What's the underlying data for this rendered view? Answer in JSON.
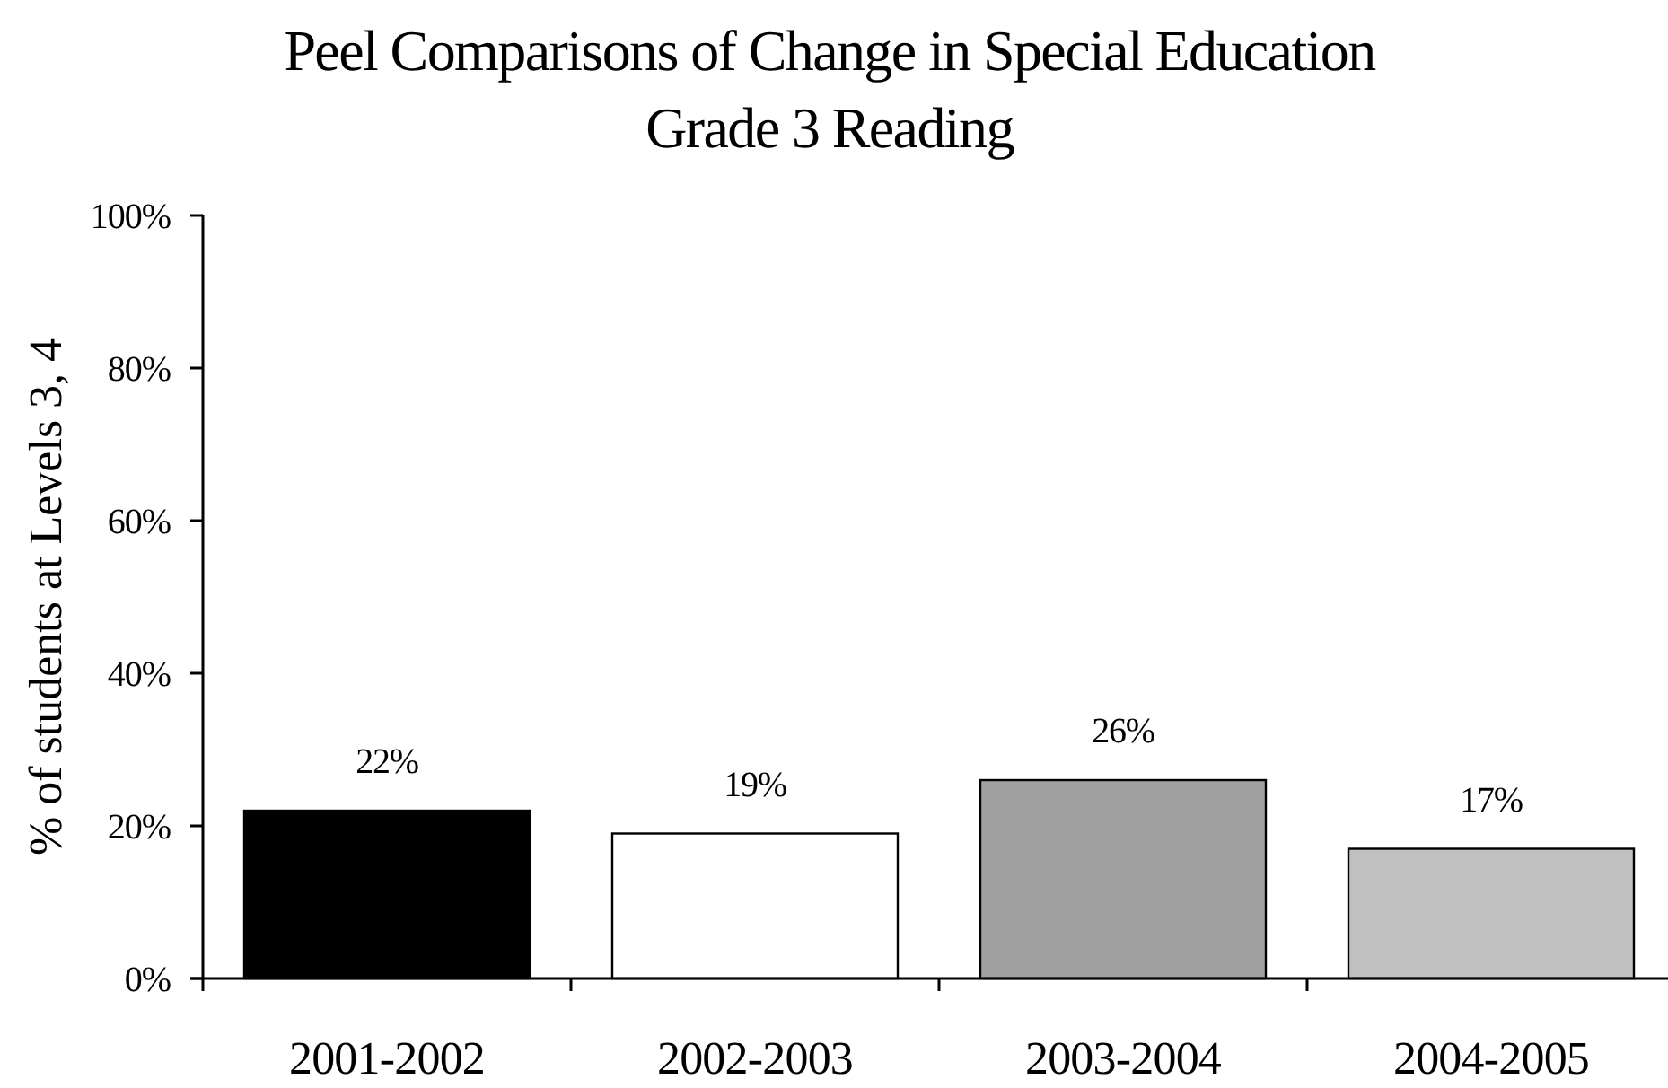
{
  "chart_data": {
    "type": "bar",
    "title": "Peel Comparisons of Change in Special Education",
    "subtitle": "Grade 3 Reading",
    "ylabel": "% of students at Levels 3, 4",
    "categories": [
      "2001-2002",
      "2002-2003",
      "2003-2004",
      "2004-2005"
    ],
    "values": [
      22,
      19,
      26,
      17
    ],
    "colors": [
      "#000000",
      "#ffffff",
      "#a0a0a0",
      "#c0c0c0"
    ],
    "value_labels": [
      "22%",
      "19%",
      "26%",
      "17%"
    ],
    "ylim": [
      0,
      100
    ],
    "yticks": [
      {
        "value": 0,
        "label": "0%"
      },
      {
        "value": 20,
        "label": "20%"
      },
      {
        "value": 40,
        "label": "40%"
      },
      {
        "value": 60,
        "label": "60%"
      },
      {
        "value": 80,
        "label": "80%"
      },
      {
        "value": 100,
        "label": "100%"
      }
    ]
  }
}
